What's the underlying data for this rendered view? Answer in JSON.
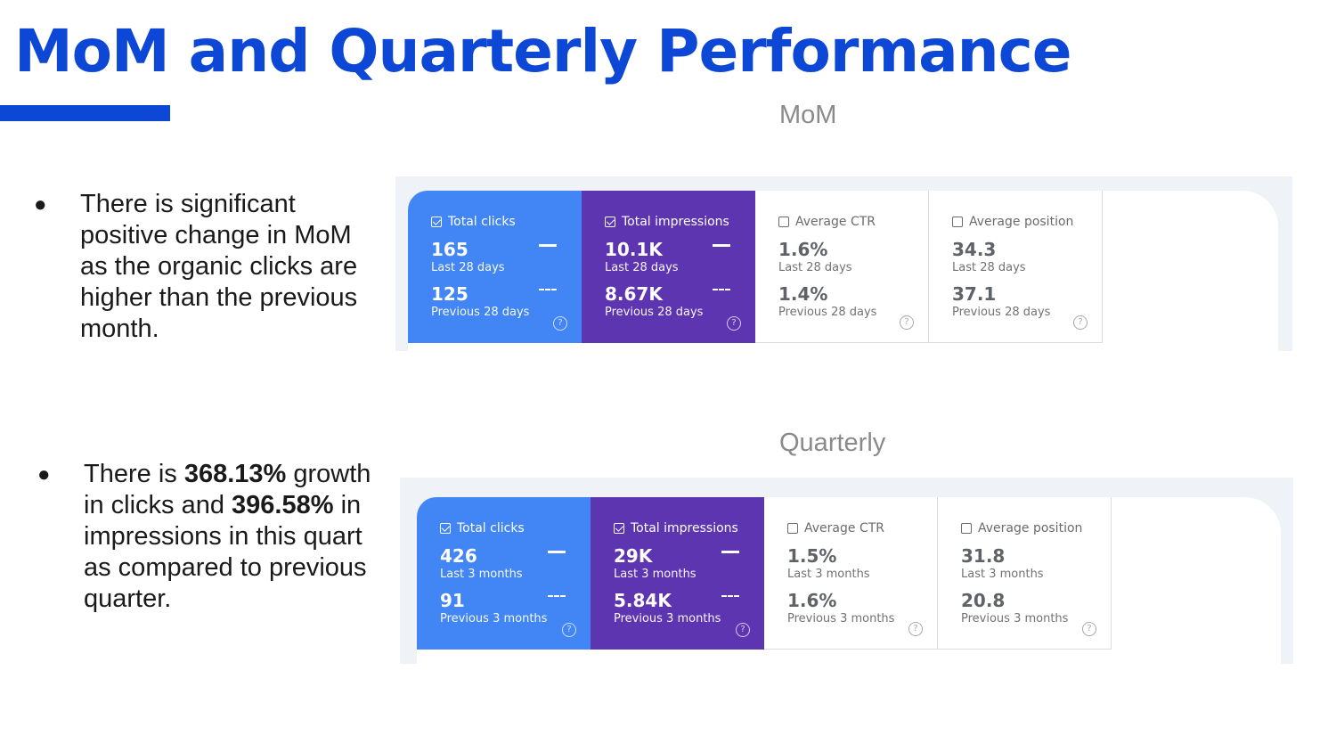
{
  "title": "MoM and Quarterly Performance",
  "colors": {
    "title": "#0c47d6",
    "blue_card": "#4285f4",
    "purple_card": "#5e35b1",
    "panel_bg": "#eff2f6"
  },
  "mom": {
    "label": "MoM",
    "bullet": "There is significant positive change in MoM as the organic clicks are higher than the previous month.",
    "cards": [
      {
        "title": "Total clicks",
        "checked": true,
        "current": "165",
        "current_label": "Last 28 days",
        "previous": "125",
        "previous_label": "Previous 28 days",
        "help": "?"
      },
      {
        "title": "Total impressions",
        "checked": true,
        "current": "10.1K",
        "current_label": "Last 28 days",
        "previous": "8.67K",
        "previous_label": "Previous 28 days",
        "help": "?"
      },
      {
        "title": "Average CTR",
        "checked": false,
        "current": "1.6%",
        "current_label": "Last 28 days",
        "previous": "1.4%",
        "previous_label": "Previous 28 days",
        "help": "?"
      },
      {
        "title": "Average position",
        "checked": false,
        "current": "34.3",
        "current_label": "Last 28 days",
        "previous": "37.1",
        "previous_label": "Previous 28 days",
        "help": "?"
      }
    ]
  },
  "quarterly": {
    "label": "Quarterly",
    "bullet_parts": [
      "There is ",
      "368.13%",
      " growth in clicks and ",
      "396.58%",
      " in impressions in this quart as compared to previous quarter."
    ],
    "cards": [
      {
        "title": "Total clicks",
        "checked": true,
        "current": "426",
        "current_label": "Last 3 months",
        "previous": "91",
        "previous_label": "Previous 3 months",
        "help": "?"
      },
      {
        "title": "Total impressions",
        "checked": true,
        "current": "29K",
        "current_label": "Last 3 months",
        "previous": "5.84K",
        "previous_label": "Previous 3 months",
        "help": "?"
      },
      {
        "title": "Average CTR",
        "checked": false,
        "current": "1.5%",
        "current_label": "Last 3 months",
        "previous": "1.6%",
        "previous_label": "Previous 3 months",
        "help": "?"
      },
      {
        "title": "Average position",
        "checked": false,
        "current": "31.8",
        "current_label": "Last 3 months",
        "previous": "20.8",
        "previous_label": "Previous 3 months",
        "help": "?"
      }
    ]
  }
}
